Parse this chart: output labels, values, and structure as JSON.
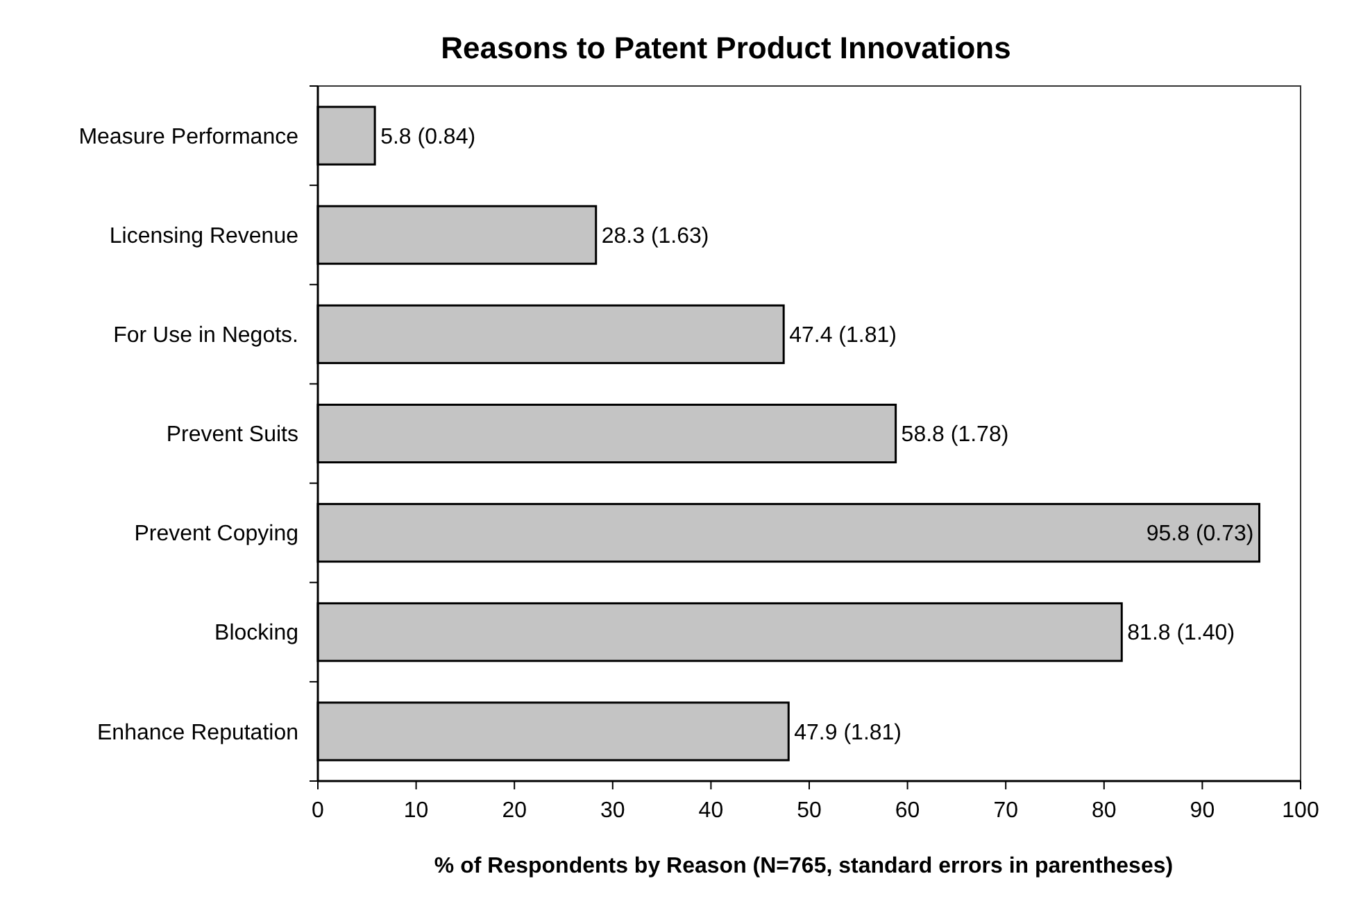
{
  "chart_data": {
    "type": "bar",
    "orientation": "horizontal",
    "title": "Reasons to Patent Product Innovations",
    "xlabel": "% of Respondents by Reason (N=765, standard errors in parentheses)",
    "categories": [
      "Measure Performance",
      "Licensing Revenue",
      "For Use in Negots.",
      "Prevent Suits",
      "Prevent Copying",
      "Blocking",
      "Enhance Reputation"
    ],
    "values": [
      5.8,
      28.3,
      47.4,
      58.8,
      95.8,
      81.8,
      47.9
    ],
    "value_labels": [
      "5.8 (0.84)",
      "28.3 (1.63)",
      "47.4 (1.81)",
      "58.8 (1.78)",
      "95.8 (0.73)",
      "81.8 (1.40)",
      "47.9 (1.81)"
    ],
    "color": "#c4c4c4",
    "xlim": [
      0,
      100
    ],
    "xticks": [
      0,
      10,
      20,
      30,
      40,
      50,
      60,
      70,
      80,
      90,
      100
    ],
    "grid": false
  }
}
